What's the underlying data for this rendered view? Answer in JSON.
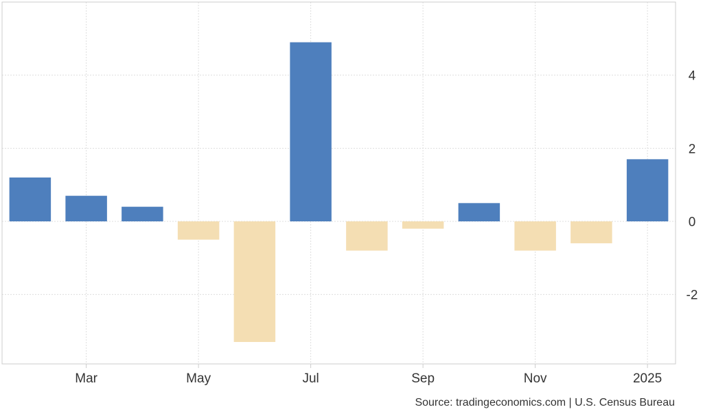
{
  "chart_data": {
    "type": "bar",
    "categories": [
      "Feb 2024",
      "Mar 2024",
      "Apr 2024",
      "May 2024",
      "Jun 2024",
      "Jul 2024",
      "Aug 2024",
      "Sep 2024",
      "Oct 2024",
      "Nov 2024",
      "Dec 2024",
      "Jan 2025"
    ],
    "values": [
      1.2,
      0.7,
      0.4,
      -0.5,
      -3.3,
      4.9,
      -0.8,
      -0.2,
      0.5,
      -0.8,
      -0.6,
      1.7
    ],
    "x_tick_labels": [
      {
        "label": "Mar",
        "category": "Mar 2024"
      },
      {
        "label": "May",
        "category": "May 2024"
      },
      {
        "label": "Jul",
        "category": "Jul 2024"
      },
      {
        "label": "Sep",
        "category": "Sep 2024"
      },
      {
        "label": "Nov",
        "category": "Nov 2024"
      },
      {
        "label": "2025",
        "category": "Jan 2025"
      }
    ],
    "y_ticks": [
      4,
      2,
      0,
      -2
    ],
    "ylim": [
      -3.9,
      6.0
    ],
    "grid": true,
    "title": "",
    "xlabel": "",
    "ylabel": "",
    "colors": {
      "positive": "#4e7fbd",
      "negative": "#f4deb3",
      "grid": "#dddddd",
      "axis": "#cccccc"
    }
  },
  "footer": {
    "source": "Source: tradingeconomics.com | U.S. Census Bureau"
  }
}
